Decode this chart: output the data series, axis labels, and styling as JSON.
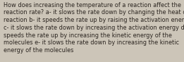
{
  "lines": [
    "How does increasing the temperature of a reaction affect the",
    "reaction rate? a- it slows the rate down by changing the heat of",
    "reaction b- it speeds the rate up by raising the activation energy",
    "c- it slows the rate down by increasing the activation energy d- it",
    "speeds the rate up by increasing the kinetic energy of the",
    "molecules e- it slows the rate down by increasing the kinetic",
    "energy of the molecules"
  ],
  "background_color": "#ccc5b8",
  "text_color": "#2b2520",
  "font_size": 5.85,
  "figwidth": 2.61,
  "figheight": 0.88,
  "dpi": 100
}
